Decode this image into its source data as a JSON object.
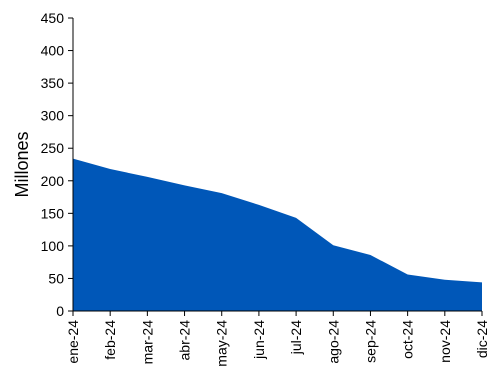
{
  "chart_data": {
    "type": "area",
    "title": "",
    "xlabel": "",
    "ylabel": "Millones",
    "ylim": [
      0,
      450
    ],
    "ytick_step": 50,
    "grid": false,
    "legend": "none",
    "categories": [
      "ene-24",
      "feb-24",
      "mar-24",
      "abr-24",
      "may-24",
      "jun-24",
      "jul-24",
      "ago-24",
      "sep-24",
      "oct-24",
      "nov-24",
      "dic-24"
    ],
    "series": [
      {
        "values": [
          234,
          218,
          206,
          193,
          181,
          163,
          143,
          101,
          86,
          56,
          48,
          44
        ],
        "color": "#0057b8"
      }
    ]
  }
}
